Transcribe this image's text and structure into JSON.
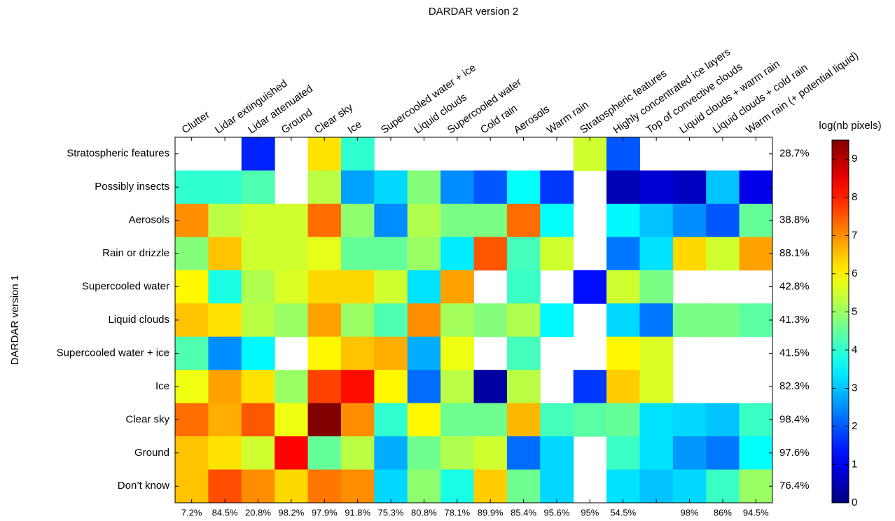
{
  "chart_data": {
    "type": "heatmap",
    "title": "DARDAR version 2",
    "y_label": "DARDAR version 1",
    "colorbar_label": "log(nb pixels)",
    "colormap": "jet",
    "zlim": [
      0,
      9.5
    ],
    "zticks": [
      0,
      1,
      2,
      3,
      4,
      5,
      6,
      7,
      8,
      9
    ],
    "x": [
      "Clutter",
      "Lidar extinguished",
      "Lidar attenuated",
      "Ground",
      "Clear sky",
      "Ice",
      "Supercooled water + ice",
      "Liquid clouds",
      "Supercooled water",
      "Cold rain",
      "Aerosols",
      "Warm rain",
      "Stratospheric features",
      "Highly concentrated ice layers",
      "Top of convective clouds",
      "Liquid clouds + warm rain",
      "Liquid clouds + cold rain",
      "Warm rain (+ potential liquid)"
    ],
    "y": [
      "Stratospheric features",
      "Possibly insects",
      "Aerosols",
      "Rain or drizzle",
      "Supercooled water",
      "Liquid clouds",
      "Supercooled water + ice",
      "Ice",
      "Clear sky",
      "Ground",
      "Don’t know"
    ],
    "values": [
      [
        null,
        null,
        1.5,
        null,
        6.2,
        4.0,
        null,
        null,
        null,
        null,
        null,
        null,
        5.5,
        2.0,
        null,
        null,
        null,
        null
      ],
      [
        4.0,
        4.0,
        4.3,
        null,
        5.3,
        2.7,
        3.2,
        4.8,
        2.5,
        2.0,
        3.6,
        1.7,
        null,
        0.5,
        0.8,
        0.6,
        3.0,
        1.0
      ],
      [
        7.0,
        5.3,
        5.5,
        5.5,
        7.3,
        4.9,
        2.5,
        5.2,
        4.7,
        4.7,
        7.3,
        3.6,
        null,
        3.5,
        3.0,
        2.5,
        2.0,
        4.5
      ],
      [
        4.8,
        6.5,
        5.5,
        5.5,
        5.7,
        4.5,
        4.5,
        5.0,
        3.4,
        7.5,
        4.2,
        5.5,
        null,
        2.3,
        3.3,
        6.3,
        5.5,
        6.8
      ],
      [
        6.0,
        3.8,
        5.2,
        5.6,
        6.3,
        6.3,
        5.5,
        3.3,
        6.8,
        null,
        4.1,
        null,
        1.3,
        5.5,
        4.7,
        null,
        null,
        null
      ],
      [
        6.5,
        6.2,
        5.3,
        5.0,
        6.8,
        5.0,
        4.3,
        7.0,
        5.1,
        4.8,
        5.2,
        3.5,
        null,
        3.2,
        2.3,
        4.7,
        4.7,
        4.4
      ],
      [
        4.3,
        2.5,
        3.5,
        null,
        6.0,
        6.5,
        6.7,
        2.8,
        5.8,
        null,
        4.2,
        null,
        null,
        6.0,
        5.6,
        null,
        null,
        null
      ],
      [
        5.8,
        6.8,
        6.2,
        5.0,
        7.7,
        8.2,
        6.0,
        2.2,
        5.3,
        0.3,
        5.3,
        null,
        1.7,
        6.4,
        5.6,
        null,
        null,
        null
      ],
      [
        7.3,
        6.7,
        7.5,
        5.8,
        9.5,
        7.0,
        4.0,
        6.0,
        4.6,
        4.6,
        6.6,
        4.2,
        4.4,
        4.5,
        3.3,
        3.2,
        3.0,
        4.1
      ],
      [
        6.5,
        6.2,
        5.5,
        8.3,
        4.5,
        5.3,
        2.8,
        4.6,
        5.2,
        5.5,
        2.2,
        3.2,
        null,
        4.1,
        3.3,
        2.6,
        2.3,
        3.6
      ],
      [
        6.5,
        7.6,
        7.0,
        6.3,
        7.2,
        7.0,
        3.2,
        4.9,
        3.8,
        6.4,
        4.6,
        3.2,
        null,
        3.3,
        3.0,
        3.2,
        4.1,
        5.0
      ]
    ],
    "row_percent": [
      28.7,
      null,
      38.8,
      88.1,
      42.8,
      41.3,
      41.5,
      82.3,
      98.4,
      97.6,
      76.4
    ],
    "row_percent_labels": [
      "28.7%",
      null,
      "38.8%",
      "88.1%",
      "42.8%",
      "41.3%",
      "41.5%",
      "82.3%",
      "98.4%",
      "97.6%",
      "76.4%"
    ],
    "column_percent": [
      7.2,
      84.5,
      20.8,
      98.2,
      97.9,
      91.8,
      75.3,
      80.8,
      78.1,
      89.9,
      85.4,
      95.6,
      95,
      54.5,
      null,
      98,
      86,
      94.5
    ],
    "column_percent_labels": [
      "7.2%",
      "84.5%",
      "20.8%",
      "98.2%",
      "97.9%",
      "91.8%",
      "75.3%",
      "80.8%",
      "78.1%",
      "89.9%",
      "85.4%",
      "95.6%",
      "95%",
      "54.5%",
      null,
      "98%",
      "86%",
      "94.5%"
    ]
  }
}
